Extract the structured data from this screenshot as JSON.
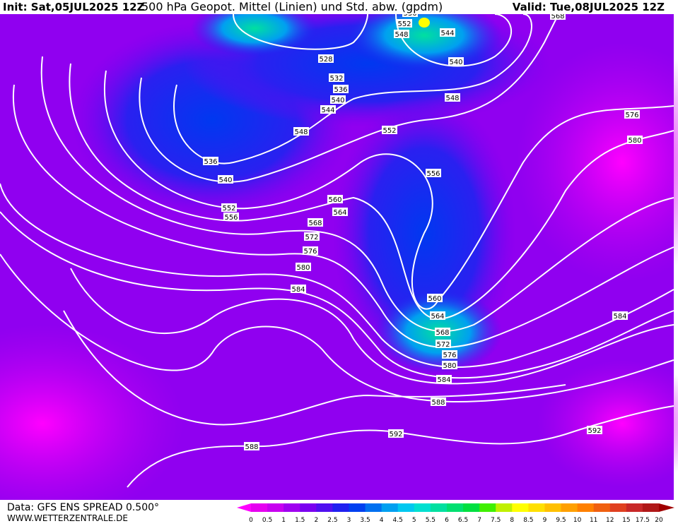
{
  "header": {
    "init": "Init: Sat,05JUL2025 12Z",
    "title": "500 hPa Geopot. Mittel (Linien) und Std. abw. (gpdm)",
    "valid": "Valid: Tue,08JUL2025 12Z"
  },
  "footer": {
    "data": "Data: GFS ENS SPREAD 0.500°",
    "site": "WWW.WETTERZENTRALE.DE"
  },
  "colorbar": {
    "ticks": [
      0,
      0.5,
      1,
      1.5,
      2,
      2.5,
      3,
      3.5,
      4,
      4.5,
      5,
      5.5,
      6,
      6.5,
      7,
      7.5,
      8,
      8.5,
      9,
      9.5,
      10,
      11,
      12,
      15,
      17.5,
      20
    ],
    "colors": [
      "#ff00ff",
      "#e600f0",
      "#c800f0",
      "#a000f0",
      "#7a00f0",
      "#5010f0",
      "#2020f0",
      "#0040f0",
      "#0070f0",
      "#00a0f0",
      "#00c8f0",
      "#00e0d0",
      "#00e0a0",
      "#00e070",
      "#00e040",
      "#40f000",
      "#c0f000",
      "#ffff00",
      "#ffe000",
      "#ffc000",
      "#ffa000",
      "#ff8000",
      "#f06010",
      "#e04020",
      "#c82828",
      "#b01818",
      "#a00000"
    ]
  },
  "contour_labels": [
    "536",
    "552",
    "548",
    "544",
    "540",
    "528",
    "532",
    "536",
    "540",
    "544",
    "548",
    "552",
    "548",
    "536",
    "540",
    "556",
    "560",
    "564",
    "552",
    "556",
    "568",
    "572",
    "576",
    "580",
    "584",
    "560",
    "564",
    "568",
    "572",
    "576",
    "580",
    "584",
    "588",
    "592",
    "588",
    "592",
    "584",
    "576",
    "580",
    "568"
  ]
}
